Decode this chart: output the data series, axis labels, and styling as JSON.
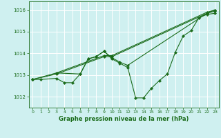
{
  "title": "Graphe pression niveau de la mer (hPa)",
  "bg_color": "#cff0f0",
  "grid_color": "#ffffff",
  "line_color": "#1a6b1a",
  "marker_color": "#1a6b1a",
  "xlim": [
    -0.5,
    23.5
  ],
  "ylim": [
    1011.5,
    1016.4
  ],
  "yticks": [
    1012,
    1013,
    1014,
    1015,
    1016
  ],
  "xticks": [
    0,
    1,
    2,
    3,
    4,
    5,
    6,
    7,
    8,
    9,
    10,
    11,
    12,
    13,
    14,
    15,
    16,
    17,
    18,
    19,
    20,
    21,
    22,
    23
  ],
  "lines": [
    {
      "x": [
        0,
        1,
        3,
        4,
        5,
        6,
        7,
        8,
        9,
        10,
        11,
        12,
        13,
        14,
        15,
        16,
        17,
        18,
        19,
        20,
        21,
        22,
        23
      ],
      "y": [
        1012.8,
        1012.8,
        1012.85,
        1012.65,
        1012.65,
        1013.05,
        1013.75,
        1013.85,
        1014.1,
        1013.75,
        1013.55,
        1013.35,
        1011.95,
        1011.95,
        1012.4,
        1012.75,
        1013.05,
        1014.05,
        1014.8,
        1015.05,
        1015.65,
        1015.8,
        1015.85
      ]
    },
    {
      "x": [
        0,
        3,
        9,
        10,
        22,
        23
      ],
      "y": [
        1012.8,
        1013.05,
        1013.85,
        1013.85,
        1015.85,
        1016.0
      ]
    },
    {
      "x": [
        0,
        3,
        9,
        10,
        22,
        23
      ],
      "y": [
        1012.8,
        1013.1,
        1013.9,
        1013.9,
        1015.9,
        1016.0
      ]
    },
    {
      "x": [
        3,
        6,
        7,
        8,
        9,
        10,
        11,
        12,
        22,
        23
      ],
      "y": [
        1013.1,
        1013.05,
        1013.75,
        1013.85,
        1014.1,
        1013.8,
        1013.6,
        1013.45,
        1015.85,
        1015.95
      ]
    }
  ]
}
